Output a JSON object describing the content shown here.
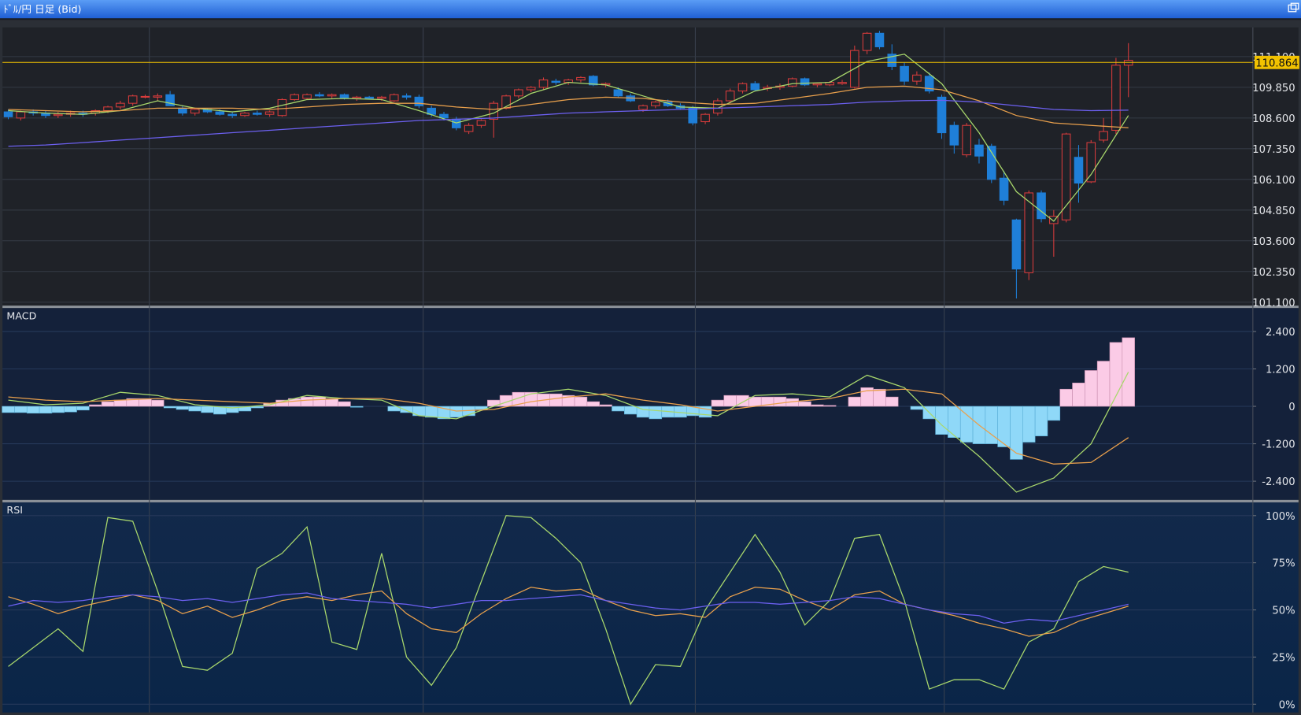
{
  "window": {
    "title": "ﾄﾞﾙ/円 日足 (Bid)"
  },
  "chart_data": [
    {
      "type": "candlestick",
      "up_color": "#d83c3c",
      "down_color": "#1f7fd8",
      "candles": [
        [
          108.85,
          108.95,
          108.55,
          108.65
        ],
        [
          108.6,
          108.9,
          108.5,
          108.85
        ],
        [
          108.85,
          108.95,
          108.7,
          108.8
        ],
        [
          108.8,
          108.9,
          108.6,
          108.7
        ],
        [
          108.7,
          108.85,
          108.6,
          108.75
        ],
        [
          108.75,
          108.9,
          108.65,
          108.8
        ],
        [
          108.8,
          108.9,
          108.65,
          108.75
        ],
        [
          108.8,
          108.95,
          108.7,
          108.9
        ],
        [
          108.9,
          109.1,
          108.8,
          109.05
        ],
        [
          109.05,
          109.3,
          108.95,
          109.2
        ],
        [
          109.2,
          109.55,
          109.1,
          109.5
        ],
        [
          109.45,
          109.55,
          109.4,
          109.48
        ],
        [
          109.45,
          109.6,
          109.3,
          109.5
        ],
        [
          109.55,
          109.7,
          109.1,
          109.1
        ],
        [
          109.0,
          109.1,
          108.7,
          108.8
        ],
        [
          108.8,
          109.0,
          108.7,
          108.95
        ],
        [
          108.95,
          109.0,
          108.8,
          108.85
        ],
        [
          108.85,
          108.95,
          108.7,
          108.75
        ],
        [
          108.75,
          108.85,
          108.6,
          108.7
        ],
        [
          108.7,
          108.85,
          108.65,
          108.8
        ],
        [
          108.8,
          108.9,
          108.7,
          108.75
        ],
        [
          108.75,
          108.9,
          108.65,
          108.85
        ],
        [
          108.7,
          109.4,
          108.65,
          109.35
        ],
        [
          109.35,
          109.6,
          109.3,
          109.55
        ],
        [
          109.4,
          109.6,
          109.35,
          109.55
        ],
        [
          109.55,
          109.65,
          109.45,
          109.5
        ],
        [
          109.5,
          109.6,
          109.4,
          109.55
        ],
        [
          109.55,
          109.6,
          109.35,
          109.4
        ],
        [
          109.4,
          109.5,
          109.3,
          109.45
        ],
        [
          109.45,
          109.5,
          109.35,
          109.4
        ],
        [
          109.4,
          109.5,
          109.3,
          109.45
        ],
        [
          109.3,
          109.6,
          109.25,
          109.55
        ],
        [
          109.5,
          109.6,
          109.35,
          109.45
        ],
        [
          109.45,
          109.55,
          109.0,
          109.1
        ],
        [
          109.0,
          109.1,
          108.65,
          108.75
        ],
        [
          108.75,
          108.85,
          108.5,
          108.6
        ],
        [
          108.55,
          108.65,
          108.1,
          108.2
        ],
        [
          108.05,
          108.4,
          107.95,
          108.3
        ],
        [
          108.3,
          108.55,
          108.2,
          108.5
        ],
        [
          108.55,
          109.3,
          107.8,
          109.2
        ],
        [
          109.0,
          109.55,
          108.95,
          109.5
        ],
        [
          109.5,
          109.8,
          109.4,
          109.75
        ],
        [
          109.75,
          109.9,
          109.65,
          109.85
        ],
        [
          109.85,
          110.25,
          109.75,
          110.15
        ],
        [
          110.1,
          110.2,
          109.95,
          110.05
        ],
        [
          110.05,
          110.2,
          109.95,
          110.15
        ],
        [
          110.15,
          110.3,
          110.05,
          110.25
        ],
        [
          110.3,
          110.35,
          109.9,
          109.95
        ],
        [
          109.95,
          110.05,
          109.85,
          110.0
        ],
        [
          109.75,
          109.85,
          109.45,
          109.5
        ],
        [
          109.5,
          109.6,
          109.25,
          109.3
        ],
        [
          108.95,
          109.15,
          108.85,
          109.1
        ],
        [
          109.1,
          109.3,
          109.0,
          109.25
        ],
        [
          109.25,
          109.35,
          109.05,
          109.1
        ],
        [
          109.1,
          109.2,
          108.95,
          109.0
        ],
        [
          109.0,
          109.1,
          108.3,
          108.4
        ],
        [
          108.45,
          108.8,
          108.35,
          108.75
        ],
        [
          108.8,
          109.4,
          108.7,
          109.3
        ],
        [
          109.3,
          109.8,
          109.2,
          109.7
        ],
        [
          109.7,
          110.05,
          109.6,
          110.0
        ],
        [
          110.0,
          110.1,
          109.7,
          109.75
        ],
        [
          109.8,
          109.95,
          109.7,
          109.85
        ],
        [
          109.85,
          110.0,
          109.75,
          109.9
        ],
        [
          109.9,
          110.25,
          109.85,
          110.2
        ],
        [
          110.2,
          110.25,
          109.9,
          109.95
        ],
        [
          109.95,
          110.05,
          109.85,
          110.0
        ],
        [
          109.95,
          110.1,
          109.9,
          110.05
        ],
        [
          110.0,
          110.15,
          109.95,
          110.05
        ],
        [
          109.85,
          111.55,
          109.8,
          111.35
        ],
        [
          111.35,
          112.1,
          111.2,
          112.05
        ],
        [
          112.05,
          112.15,
          111.4,
          111.5
        ],
        [
          111.2,
          111.6,
          110.55,
          110.7
        ],
        [
          110.7,
          110.85,
          109.95,
          110.1
        ],
        [
          110.1,
          110.5,
          109.95,
          110.35
        ],
        [
          110.3,
          110.45,
          109.6,
          109.7
        ],
        [
          109.45,
          109.55,
          107.75,
          108.0
        ],
        [
          108.3,
          108.45,
          107.15,
          107.5
        ],
        [
          107.1,
          108.4,
          107.0,
          108.3
        ],
        [
          107.5,
          107.75,
          106.75,
          107.05
        ],
        [
          107.45,
          107.55,
          105.95,
          106.1
        ],
        [
          106.15,
          106.45,
          105.05,
          105.25
        ],
        [
          104.45,
          104.5,
          101.25,
          102.45
        ],
        [
          102.3,
          105.65,
          102.0,
          105.55
        ],
        [
          105.55,
          105.65,
          104.35,
          104.5
        ],
        [
          104.3,
          104.85,
          102.95,
          104.6
        ],
        [
          104.45,
          108.0,
          104.35,
          107.95
        ],
        [
          107.0,
          107.5,
          105.15,
          105.95
        ],
        [
          106.0,
          107.7,
          105.95,
          107.6
        ],
        [
          107.7,
          108.6,
          107.6,
          108.05
        ],
        [
          108.1,
          111.05,
          107.95,
          110.75
        ],
        [
          110.75,
          111.65,
          109.45,
          110.95
        ]
      ],
      "x": [
        0,
        3,
        6,
        9,
        12,
        15,
        18,
        21,
        24,
        27,
        30,
        33,
        36,
        39,
        42,
        45,
        48,
        51,
        54,
        57,
        60,
        63,
        66,
        69,
        72,
        75,
        78,
        81,
        84,
        87,
        90
      ],
      "series": [
        {
          "color": "#a9d86c",
          "values": [
            108.9,
            108.8,
            108.75,
            108.9,
            109.3,
            109.0,
            108.85,
            109.0,
            109.35,
            109.4,
            109.35,
            108.9,
            108.4,
            108.8,
            109.6,
            110.05,
            109.95,
            109.5,
            109.05,
            109.0,
            109.7,
            110.0,
            110.05,
            110.9,
            111.2,
            110.0,
            108.0,
            105.6,
            104.4,
            106.3,
            108.7
          ]
        },
        {
          "color": "#e9a04c",
          "values": [
            108.95,
            108.9,
            108.85,
            108.9,
            109.0,
            109.0,
            109.0,
            108.95,
            109.05,
            109.15,
            109.2,
            109.2,
            109.05,
            108.95,
            109.15,
            109.35,
            109.45,
            109.4,
            109.25,
            109.15,
            109.2,
            109.4,
            109.6,
            109.85,
            109.9,
            109.75,
            109.3,
            108.7,
            108.4,
            108.3,
            108.2
          ]
        },
        {
          "color": "#6c60f0",
          "values": [
            107.45,
            107.5,
            107.6,
            107.7,
            107.8,
            107.9,
            108.0,
            108.1,
            108.2,
            108.3,
            108.4,
            108.5,
            108.55,
            108.6,
            108.7,
            108.8,
            108.85,
            108.9,
            108.95,
            109.0,
            109.05,
            109.1,
            109.15,
            109.25,
            109.3,
            109.32,
            109.25,
            109.1,
            108.95,
            108.9,
            108.92
          ]
        }
      ],
      "current_price": 110.864,
      "current_price_color": "#f2c200",
      "ylim": [
        100.96,
        112.29
      ],
      "yticks": [
        {
          "value": 111.1,
          "label": "111.100"
        },
        {
          "value": 109.85,
          "label": "109.850"
        },
        {
          "value": 108.6,
          "label": "108.600"
        },
        {
          "value": 107.35,
          "label": "107.350"
        },
        {
          "value": 106.1,
          "label": "106.100"
        },
        {
          "value": 104.85,
          "label": "104.850"
        },
        {
          "value": 103.6,
          "label": "103.600"
        },
        {
          "value": 102.35,
          "label": "102.350"
        },
        {
          "value": 101.1,
          "label": "101.100"
        }
      ],
      "grid": true
    },
    {
      "type": "macd",
      "title": "MACD",
      "histogram": [
        -0.2,
        -0.2,
        -0.22,
        -0.22,
        -0.2,
        -0.18,
        -0.12,
        0.05,
        0.15,
        0.2,
        0.25,
        0.25,
        0.2,
        -0.05,
        -0.1,
        -0.15,
        -0.2,
        -0.25,
        -0.2,
        -0.15,
        -0.05,
        0.1,
        0.2,
        0.25,
        0.3,
        0.3,
        0.25,
        0.15,
        -0.03,
        0,
        0,
        -0.15,
        -0.2,
        -0.3,
        -0.35,
        -0.4,
        -0.35,
        -0.3,
        -0.1,
        0.2,
        0.35,
        0.45,
        0.45,
        0.4,
        0.4,
        0.35,
        0.3,
        0.15,
        0.05,
        -0.15,
        -0.25,
        -0.35,
        -0.4,
        -0.35,
        -0.35,
        -0.3,
        -0.35,
        0.2,
        0.35,
        0.35,
        0.3,
        0.3,
        0.3,
        0.25,
        0.15,
        0.05,
        0.03,
        0,
        0.3,
        0.6,
        0.55,
        0.3,
        0,
        -0.1,
        -0.4,
        -0.9,
        -1.0,
        -1.15,
        -1.2,
        -1.2,
        -1.3,
        -1.7,
        -1.15,
        -0.95,
        -0.45,
        0.55,
        0.75,
        1.15,
        1.45,
        2.05,
        2.2
      ],
      "positive_color": "#fbcbe6",
      "negative_color": "#8fd8f8",
      "x": [
        0,
        3,
        6,
        9,
        12,
        15,
        18,
        21,
        24,
        27,
        30,
        33,
        36,
        39,
        42,
        45,
        48,
        51,
        54,
        57,
        60,
        63,
        66,
        69,
        72,
        75,
        78,
        81,
        84,
        87,
        90
      ],
      "series": [
        {
          "color": "#a9d86c",
          "values": [
            0.2,
            0.05,
            0.1,
            0.45,
            0.35,
            0.05,
            -0.05,
            0.05,
            0.35,
            0.25,
            0.2,
            -0.3,
            -0.4,
            0,
            0.4,
            0.55,
            0.35,
            -0.1,
            -0.2,
            -0.3,
            0.35,
            0.4,
            0.3,
            1.0,
            0.6,
            -0.6,
            -1.6,
            -2.75,
            -2.3,
            -1.2,
            1.1
          ]
        },
        {
          "color": "#e9a04c",
          "values": [
            0.3,
            0.2,
            0.15,
            0.2,
            0.25,
            0.2,
            0.15,
            0.1,
            0.2,
            0.25,
            0.25,
            0.1,
            -0.15,
            -0.1,
            0.15,
            0.3,
            0.4,
            0.2,
            0.05,
            -0.15,
            0,
            0.15,
            0.25,
            0.5,
            0.55,
            0.4,
            -0.6,
            -1.5,
            -1.85,
            -1.8,
            -1.0
          ]
        }
      ],
      "ylim": [
        -3.0,
        3.15
      ],
      "yticks": [
        {
          "value": 2.4,
          "label": "2.400"
        },
        {
          "value": 1.2,
          "label": "1.200"
        },
        0,
        {
          "value": -1.2,
          "label": "-1.200"
        },
        {
          "value": -2.4,
          "label": "-2.400"
        }
      ],
      "grid": true
    },
    {
      "type": "rsi",
      "title": "RSI",
      "x": [
        0,
        2,
        4,
        6,
        8,
        10,
        12,
        14,
        16,
        18,
        20,
        22,
        24,
        26,
        28,
        30,
        32,
        34,
        36,
        38,
        40,
        42,
        44,
        46,
        48,
        50,
        52,
        54,
        56,
        58,
        60,
        62,
        64,
        66,
        68,
        70,
        72,
        74,
        76,
        78,
        80,
        82,
        84,
        86,
        88,
        90
      ],
      "series": [
        {
          "color": "#a9d86c",
          "values": [
            20,
            30,
            40,
            28,
            99,
            97,
            60,
            20,
            18,
            27,
            72,
            80,
            94,
            33,
            29,
            80,
            25,
            10,
            30,
            65,
            100,
            99,
            88,
            75,
            40,
            0,
            21,
            20,
            50,
            70,
            90,
            70,
            42,
            55,
            88,
            90,
            55,
            8,
            13,
            13,
            8,
            33,
            40,
            65,
            73,
            70
          ]
        },
        {
          "color": "#e9a04c",
          "values": [
            57,
            53,
            48,
            52,
            55,
            58,
            55,
            48,
            52,
            46,
            50,
            55,
            57,
            55,
            58,
            60,
            48,
            40,
            38,
            48,
            56,
            62,
            60,
            61,
            55,
            50,
            47,
            48,
            46,
            57,
            62,
            61,
            55,
            50,
            58,
            60,
            53,
            50,
            47,
            43,
            40,
            36,
            38,
            44,
            48,
            52
          ]
        },
        {
          "color": "#6c60f0",
          "values": [
            52,
            55,
            54,
            55,
            57,
            58,
            57,
            55,
            56,
            54,
            56,
            58,
            59,
            56,
            55,
            54,
            53,
            51,
            53,
            55,
            55,
            56,
            57,
            58,
            55,
            53,
            51,
            50,
            52,
            54,
            54,
            53,
            54,
            55,
            57,
            56,
            53,
            50,
            48,
            47,
            43,
            45,
            44,
            47,
            50,
            53
          ]
        }
      ],
      "ylim": [
        -4.4,
        107
      ],
      "yticks": [
        {
          "value": 100,
          "label": "100%"
        },
        {
          "value": 75,
          "label": "75%"
        },
        {
          "value": 50,
          "label": "50%"
        },
        {
          "value": 25,
          "label": "25%"
        },
        {
          "value": 0,
          "label": "0%"
        }
      ],
      "grid": true
    }
  ]
}
